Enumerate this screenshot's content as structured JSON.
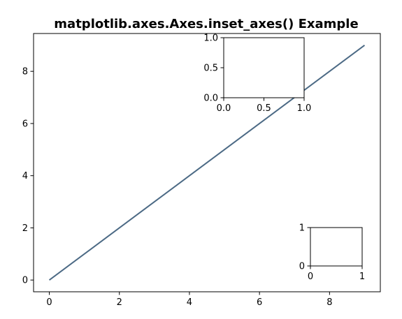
{
  "chart_data": [
    {
      "type": "line",
      "title": "matplotlib.axes.Axes.inset_axes() Example",
      "xlabel": "",
      "ylabel": "",
      "xlim": [
        -0.45,
        9.45
      ],
      "ylim": [
        -0.45,
        9.45
      ],
      "xticks": [
        0,
        2,
        4,
        6,
        8
      ],
      "yticks": [
        0,
        2,
        4,
        6,
        8
      ],
      "grid": false,
      "line_color": "#4c6a85",
      "series": [
        {
          "x": [
            0,
            1,
            2,
            3,
            4,
            5,
            6,
            7,
            8,
            9
          ],
          "y": [
            0,
            1,
            2,
            3,
            4,
            5,
            6,
            7,
            8,
            9
          ]
        }
      ]
    },
    {
      "type": "line",
      "title": "",
      "xlim": [
        0,
        1
      ],
      "ylim": [
        0,
        1
      ],
      "xticks": [
        "0.0",
        "0.5",
        "1.0"
      ],
      "yticks": [
        "0.0",
        "0.5",
        "1.0"
      ],
      "series": []
    },
    {
      "type": "line",
      "title": "",
      "xlim": [
        0,
        1
      ],
      "ylim": [
        0,
        1
      ],
      "xticks": [
        "0",
        "1"
      ],
      "yticks": [
        "0",
        "1"
      ],
      "series": []
    }
  ]
}
